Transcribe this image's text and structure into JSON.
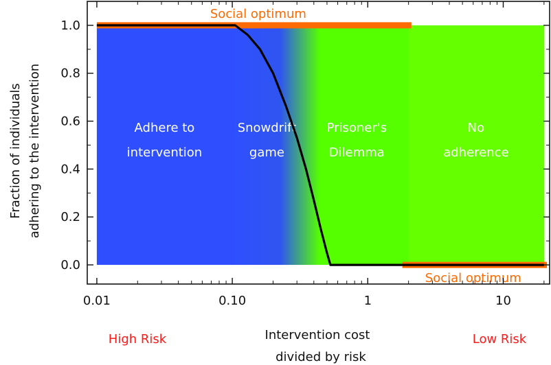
{
  "chart_data": {
    "type": "line",
    "xscale": "log",
    "xlim": [
      0.0085,
      22
    ],
    "ylim": [
      -0.08,
      1.1
    ],
    "xticks": [
      0.01,
      0.1,
      1,
      10
    ],
    "xtick_labels": [
      "0.01",
      "0.10",
      "1",
      "10"
    ],
    "yticks": [
      0.0,
      0.2,
      0.4,
      0.6,
      0.8,
      1.0
    ],
    "ytick_labels": [
      "0.0",
      "0.2",
      "0.4",
      "0.6",
      "0.8",
      "1.0"
    ],
    "xlabel_lines": [
      "Intervention cost",
      "divided by risk"
    ],
    "ylabel_lines": [
      "Fraction of individuals",
      "adhering to the intervention"
    ],
    "grid": false,
    "series": [
      {
        "color": "#000000",
        "x": [
          0.01,
          0.105,
          0.13,
          0.16,
          0.2,
          0.25,
          0.3,
          0.35,
          0.4,
          0.45,
          0.5,
          0.53,
          1,
          5,
          20
        ],
        "y": [
          1.0,
          1.0,
          0.96,
          0.9,
          0.8,
          0.66,
          0.53,
          0.4,
          0.27,
          0.15,
          0.05,
          0.0,
          0.0,
          0.0,
          0.0
        ]
      }
    ],
    "regions": [
      {
        "x_start": 0.01,
        "x_end": 0.1,
        "lines": [
          "Adhere to",
          "intervention"
        ],
        "color": "#2f4fff"
      },
      {
        "x_start": 0.1,
        "x_end": 0.25,
        "lines": [
          "Snowdrift",
          "game"
        ],
        "color": "#2f4fff"
      },
      {
        "x_start": 0.25,
        "x_end": 2.0,
        "lines": [
          "Prisoner's",
          "Dilemma"
        ],
        "color": "#55ff00"
      },
      {
        "x_start": 2.0,
        "x_end": 20,
        "lines": [
          "No",
          "adherence"
        ],
        "color": "#66ff00"
      }
    ],
    "annotations": [
      {
        "text": "Social optimum",
        "x_start": 0.01,
        "x_end": 2.1,
        "y": 1.0,
        "position": "above",
        "color": "#ff6a00"
      },
      {
        "text": "Social optimum",
        "x_start": 1.8,
        "x_end": 21,
        "y": 0.0,
        "position": "below",
        "color": "#ff6a00"
      }
    ],
    "side_labels": {
      "left": "High Risk",
      "right": "Low Risk",
      "color": "#ff1a1a"
    }
  }
}
